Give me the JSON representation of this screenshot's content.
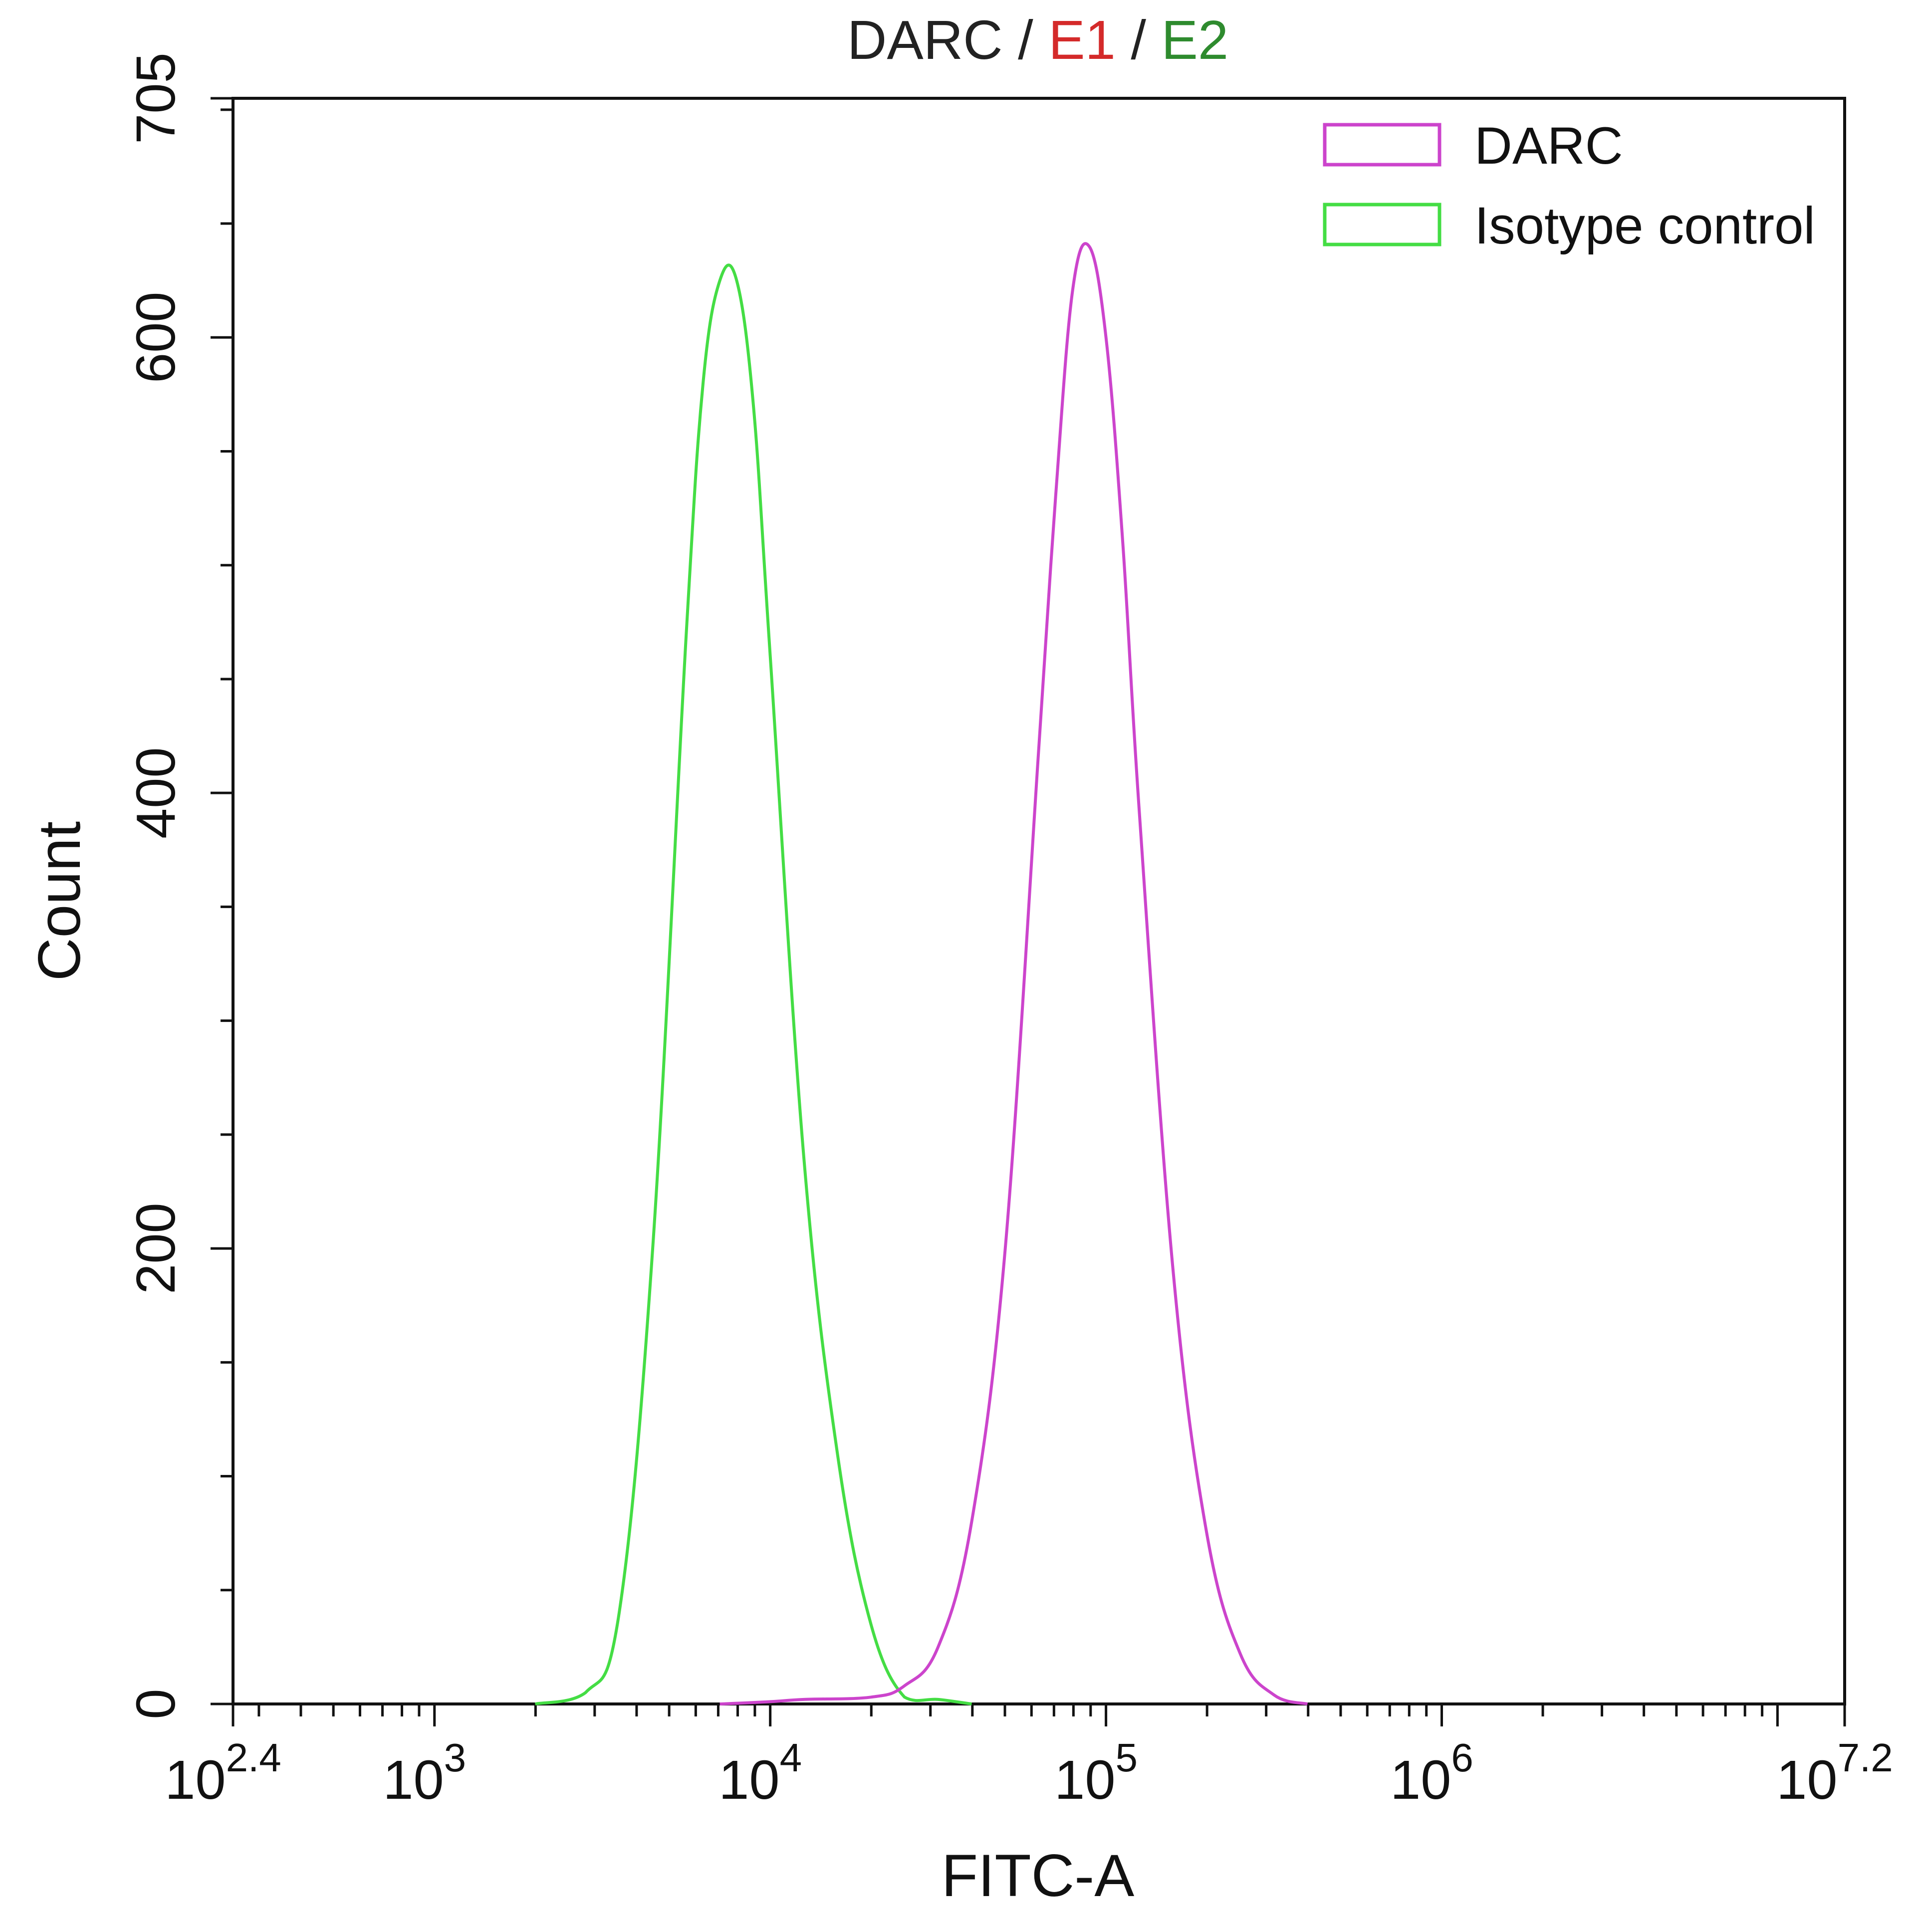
{
  "chart_data": {
    "type": "line",
    "title_parts": [
      {
        "text": "DARC",
        "color": "#222222"
      },
      {
        "text": " / ",
        "color": "#222222"
      },
      {
        "text": "E1",
        "color": "#d42a2a"
      },
      {
        "text": " / ",
        "color": "#222222"
      },
      {
        "text": "E2",
        "color": "#2e8b2e"
      }
    ],
    "xlabel": "FITC-A",
    "ylabel": "Count",
    "x_scale": "log",
    "xlim_log10": [
      2.4,
      7.2
    ],
    "ylim": [
      0,
      705
    ],
    "x_ticks": [
      {
        "base": "10",
        "exp": "2.4",
        "log": 2.4
      },
      {
        "base": "10",
        "exp": "3",
        "log": 3
      },
      {
        "base": "10",
        "exp": "4",
        "log": 4
      },
      {
        "base": "10",
        "exp": "5",
        "log": 5
      },
      {
        "base": "10",
        "exp": "6",
        "log": 6
      },
      {
        "base": "10",
        "exp": "7.2",
        "log": 7.2
      }
    ],
    "y_ticks": [
      0,
      200,
      400,
      600,
      705
    ],
    "grid": false,
    "legend_position": "top-right",
    "series": [
      {
        "name": "DARC",
        "color": "#cc44cc",
        "points_log10x": [
          [
            3.85,
            0
          ],
          [
            4.0,
            1
          ],
          [
            4.1,
            2
          ],
          [
            4.3,
            3
          ],
          [
            4.4,
            8
          ],
          [
            4.5,
            25
          ],
          [
            4.6,
            80
          ],
          [
            4.7,
            200
          ],
          [
            4.8,
            420
          ],
          [
            4.85,
            530
          ],
          [
            4.9,
            620
          ],
          [
            4.95,
            640
          ],
          [
            5.0,
            600
          ],
          [
            5.05,
            510
          ],
          [
            5.1,
            390
          ],
          [
            5.2,
            190
          ],
          [
            5.3,
            75
          ],
          [
            5.4,
            22
          ],
          [
            5.5,
            4
          ],
          [
            5.6,
            0
          ]
        ]
      },
      {
        "name": "Isotype control",
        "color": "#44dd44",
        "points_log10x": [
          [
            3.3,
            0
          ],
          [
            3.45,
            5
          ],
          [
            3.55,
            40
          ],
          [
            3.65,
            200
          ],
          [
            3.75,
            470
          ],
          [
            3.8,
            580
          ],
          [
            3.85,
            625
          ],
          [
            3.9,
            625
          ],
          [
            3.95,
            570
          ],
          [
            4.0,
            460
          ],
          [
            4.1,
            240
          ],
          [
            4.2,
            110
          ],
          [
            4.3,
            35
          ],
          [
            4.4,
            3
          ],
          [
            4.5,
            2
          ],
          [
            4.6,
            0
          ]
        ]
      }
    ]
  }
}
